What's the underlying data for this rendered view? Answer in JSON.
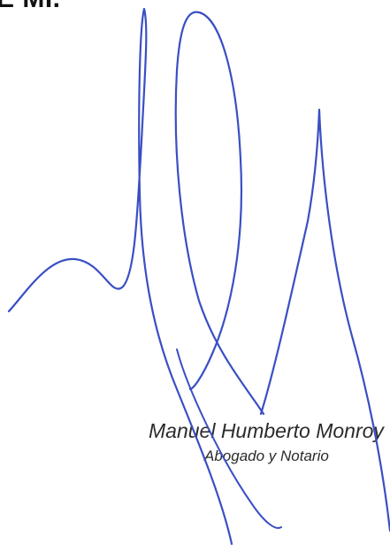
{
  "document": {
    "heading_fragment": "E MI.",
    "signature": {
      "ink_color": "#3a4fc4"
    },
    "signer": {
      "name": "Manuel Humberto Monroy",
      "title": "Abogado y Notario"
    }
  }
}
